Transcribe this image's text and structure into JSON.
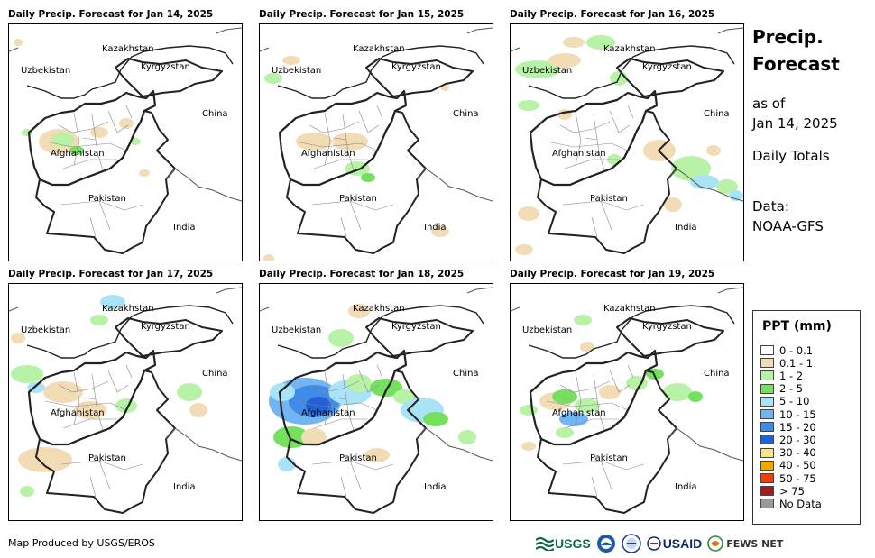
{
  "panels": [
    {
      "title": "Daily Precip. Forecast for Jan 14, 2025",
      "precip": "p14"
    },
    {
      "title": "Daily Precip. Forecast for Jan 15, 2025",
      "precip": "p15"
    },
    {
      "title": "Daily Precip. Forecast for Jan 16, 2025",
      "precip": "p16"
    },
    {
      "title": "Daily Precip. Forecast for Jan 17, 2025",
      "precip": "p17"
    },
    {
      "title": "Daily Precip. Forecast for Jan 18, 2025",
      "precip": "p18"
    },
    {
      "title": "Daily Precip. Forecast for Jan 19, 2025",
      "precip": "p19"
    }
  ],
  "country_labels": {
    "kazakhstan": "Kazakhstan",
    "uzbekistan": "Uzbekistan",
    "kyrgyzstan": "Kyrgyzstan",
    "china": "China",
    "afghanistan": "Afghanistan",
    "pakistan": "Pakistan",
    "india": "India"
  },
  "sidebar": {
    "title_line1": "Precip.",
    "title_line2": "Forecast",
    "asof_line1": "as of",
    "asof_line2": "Jan 14, 2025",
    "totals": "Daily Totals",
    "data_line1": "Data:",
    "data_line2": "NOAA-GFS"
  },
  "legend": {
    "title": "PPT (mm)",
    "items": [
      {
        "label": "0 - 0.1",
        "color": "#ffffff"
      },
      {
        "label": "0.1 - 1",
        "color": "#f2dcb5"
      },
      {
        "label": "1 - 2",
        "color": "#b7f2a6"
      },
      {
        "label": "2 - 5",
        "color": "#74e05d"
      },
      {
        "label": "5 - 10",
        "color": "#a9e3f7"
      },
      {
        "label": "10 - 15",
        "color": "#73b5f2"
      },
      {
        "label": "15 - 20",
        "color": "#3e8ce8"
      },
      {
        "label": "20 - 30",
        "color": "#2160d6"
      },
      {
        "label": "30 - 40",
        "color": "#f9e38a"
      },
      {
        "label": "40 - 50",
        "color": "#f7a500"
      },
      {
        "label": "50 - 75",
        "color": "#f23e07"
      },
      {
        "label": "> 75",
        "color": "#a61c1c"
      },
      {
        "label": "No Data",
        "color": "#999999"
      }
    ]
  },
  "credit": "Map Produced by USGS/EROS",
  "logos": {
    "usgs": "USGS",
    "usaid": "USAID",
    "fewsnet": "FEWS NET"
  }
}
